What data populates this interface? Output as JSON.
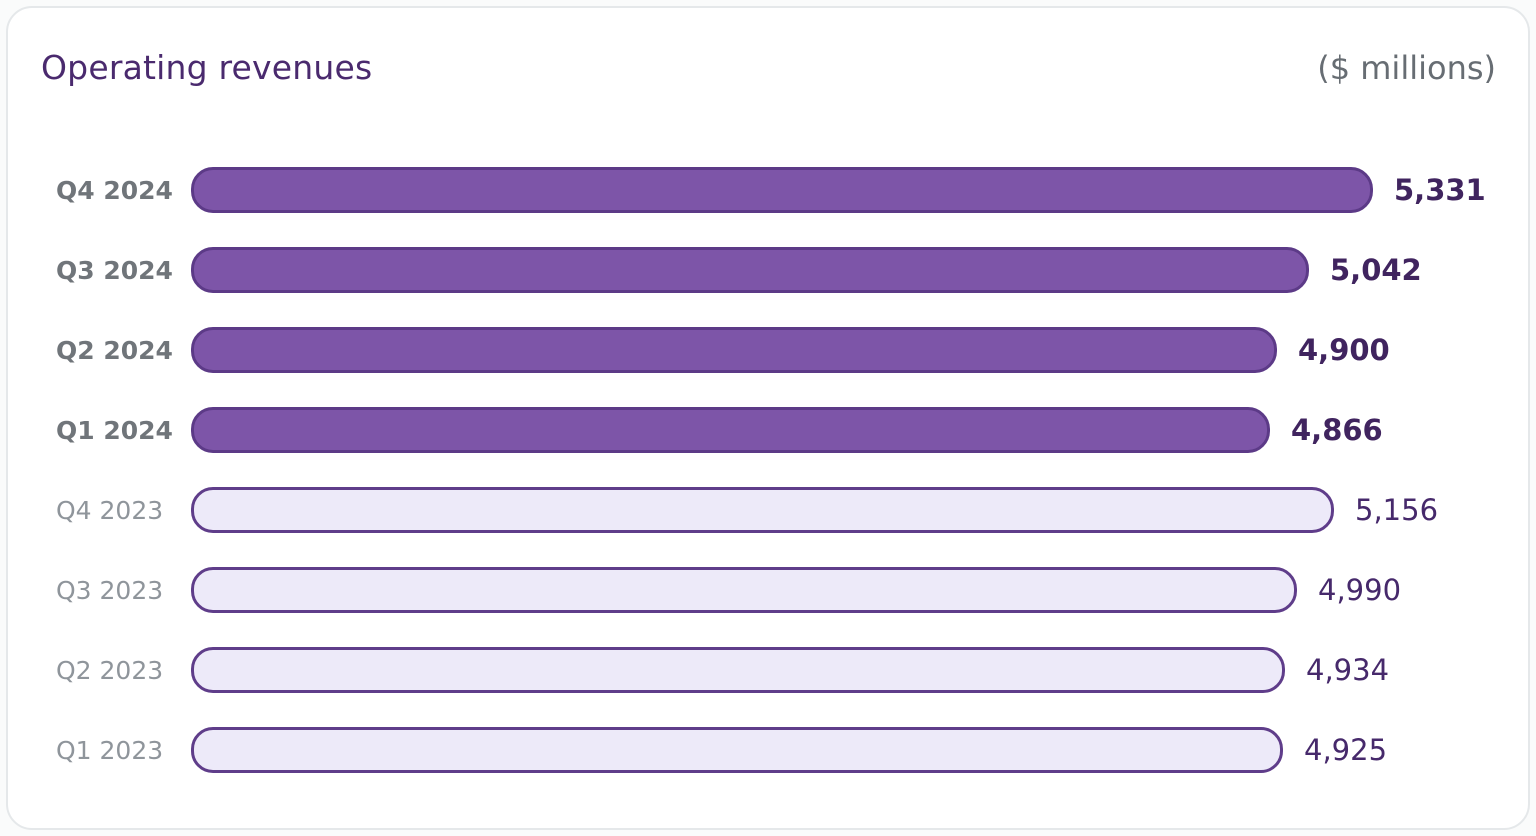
{
  "header": {
    "title": "Operating revenues",
    "unit_label": "($ millions)"
  },
  "chart_data": {
    "type": "bar",
    "orientation": "horizontal",
    "title": "Operating revenues",
    "unit": "$ millions",
    "categories": [
      "Q4 2024",
      "Q3 2024",
      "Q2 2024",
      "Q1 2024",
      "Q4 2023",
      "Q3 2023",
      "Q2 2023",
      "Q1 2023"
    ],
    "values": [
      5331,
      5042,
      4900,
      4866,
      5156,
      4990,
      4934,
      4925
    ],
    "value_labels": [
      "5,331",
      "5,042",
      "4,900",
      "4,866",
      "5,156",
      "4,990",
      "4,934",
      "4,925"
    ],
    "series_groups": [
      "2024",
      "2024",
      "2024",
      "2024",
      "2023",
      "2023",
      "2023",
      "2023"
    ],
    "xlim": [
      0,
      5331
    ],
    "grid": false,
    "legend": "none",
    "value_label_position": "end-of-bar",
    "colors": {
      "bar_2024_fill": "#7d55a8",
      "bar_2024_border": "#5c3a87",
      "bar_2023_fill": "#edeaf9",
      "bar_2023_border": "#5f3d8a",
      "title": "#4a2a6e",
      "unit_label": "#676d73",
      "label_2024": "#70757a",
      "label_2023": "#8f959b",
      "value_2024": "#40245f",
      "value_2023": "#46296b"
    }
  }
}
